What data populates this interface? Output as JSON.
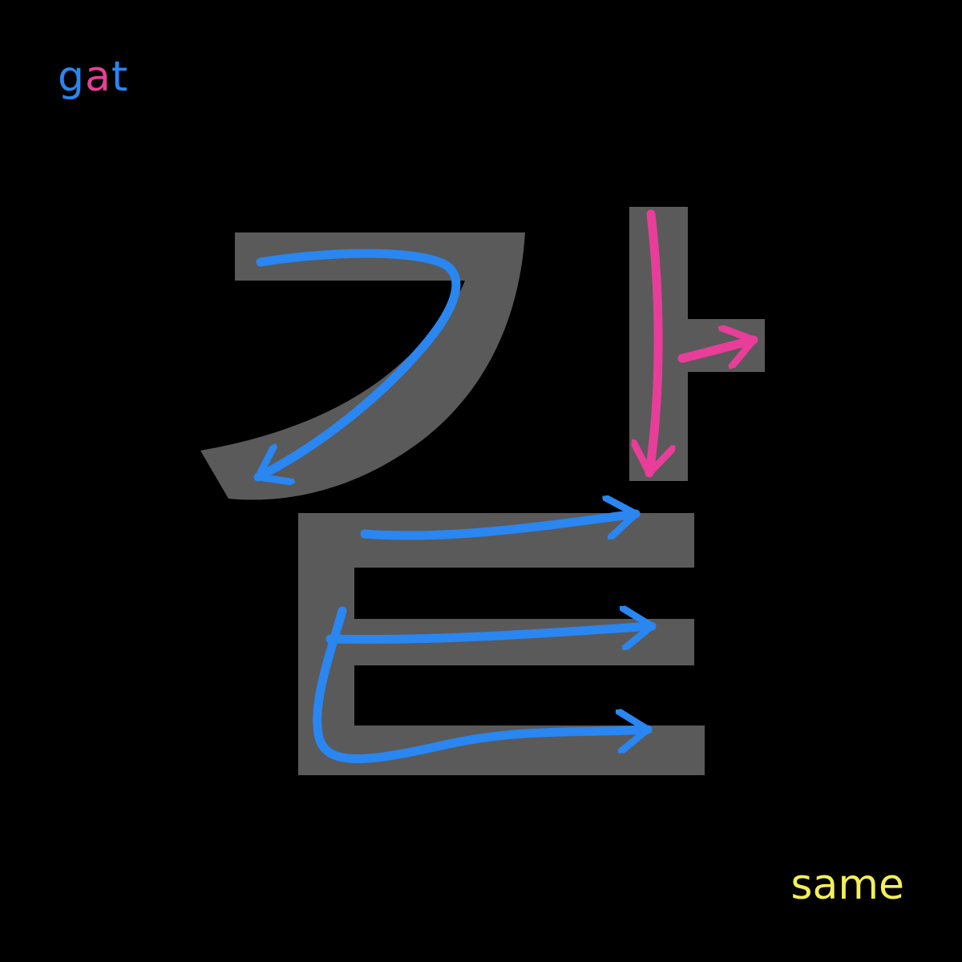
{
  "romanization": {
    "segments": [
      {
        "text": "g",
        "role": "initial-consonant"
      },
      {
        "text": "a",
        "role": "vowel"
      },
      {
        "text": "t",
        "role": "final-consonant"
      }
    ]
  },
  "meaning": {
    "text": "same"
  },
  "syllable": {
    "components": [
      {
        "jamo": "ㄱ",
        "role": "initial-consonant",
        "strokes": 1
      },
      {
        "jamo": "ㅏ",
        "role": "vowel",
        "strokes": 2
      },
      {
        "jamo": "ㅌ",
        "role": "final-consonant",
        "strokes": 3
      }
    ]
  },
  "colors": {
    "background": "#000000",
    "glyph": "#5a5a5a",
    "consonant": "#2a86f0",
    "vowel": "#e83e9a",
    "meaning": "#f2ef5a"
  }
}
